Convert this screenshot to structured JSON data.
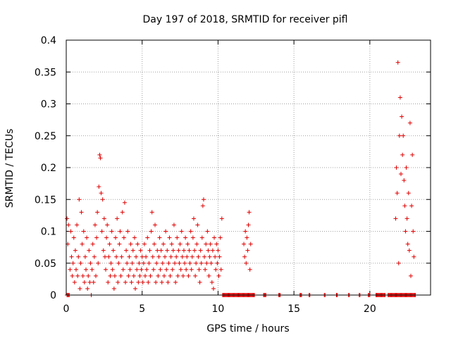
{
  "chart_data": {
    "type": "scatter",
    "title": "Day 197 of 2018, SRMTID for receiver pifl",
    "xlabel": "GPS time / hours",
    "ylabel": "SRMTID / TECUs",
    "xlim": [
      0,
      24
    ],
    "ylim": [
      0,
      0.4
    ],
    "x_ticks": [
      0,
      5,
      10,
      15,
      20
    ],
    "x_tick_labels": [
      "0",
      "5",
      "10",
      "15",
      "20"
    ],
    "y_ticks": [
      0,
      0.05,
      0.1,
      0.15,
      0.2,
      0.25,
      0.3,
      0.35,
      0.4
    ],
    "y_tick_labels": [
      "0",
      "0.05",
      "0.1",
      "0.15",
      "0.2",
      "0.25",
      "0.3",
      "0.35",
      "0.4"
    ],
    "grid": true,
    "marker": "+",
    "color": "#e00000",
    "series": [
      {
        "name": "SRMTID",
        "points": [
          [
            0.05,
            0.12
          ],
          [
            0.1,
            0.08
          ],
          [
            0.15,
            0.11
          ],
          [
            0.2,
            0.0
          ],
          [
            0.25,
            0.04
          ],
          [
            0.3,
            0.1
          ],
          [
            0.35,
            0.06
          ],
          [
            0.4,
            0.03
          ],
          [
            0.45,
            0.05
          ],
          [
            0.5,
            0.09
          ],
          [
            0.55,
            0.02
          ],
          [
            0.6,
            0.07
          ],
          [
            0.65,
            0.04
          ],
          [
            0.7,
            0.11
          ],
          [
            0.75,
            0.03
          ],
          [
            0.8,
            0.06
          ],
          [
            0.85,
            0.15
          ],
          [
            0.9,
            0.01
          ],
          [
            0.95,
            0.05
          ],
          [
            1.0,
            0.13
          ],
          [
            1.05,
            0.08
          ],
          [
            1.1,
            0.03
          ],
          [
            1.15,
            0.1
          ],
          [
            1.2,
            0.02
          ],
          [
            1.25,
            0.06
          ],
          [
            1.3,
            0.04
          ],
          [
            1.35,
            0.09
          ],
          [
            1.4,
            0.01
          ],
          [
            1.45,
            0.03
          ],
          [
            1.5,
            0.07
          ],
          [
            1.55,
            0.02
          ],
          [
            1.6,
            0.05
          ],
          [
            1.65,
            0.0
          ],
          [
            1.7,
            0.04
          ],
          [
            1.75,
            0.08
          ],
          [
            1.8,
            0.02
          ],
          [
            1.85,
            0.06
          ],
          [
            1.9,
            0.11
          ],
          [
            1.95,
            0.03
          ],
          [
            2.0,
            0.09
          ],
          [
            2.05,
            0.13
          ],
          [
            2.1,
            0.05
          ],
          [
            2.15,
            0.17
          ],
          [
            2.2,
            0.22
          ],
          [
            2.25,
            0.215
          ],
          [
            2.3,
            0.16
          ],
          [
            2.35,
            0.1
          ],
          [
            2.4,
            0.15
          ],
          [
            2.45,
            0.07
          ],
          [
            2.5,
            0.12
          ],
          [
            2.55,
            0.06
          ],
          [
            2.6,
            0.04
          ],
          [
            2.65,
            0.09
          ],
          [
            2.7,
            0.11
          ],
          [
            2.75,
            0.02
          ],
          [
            2.8,
            0.06
          ],
          [
            2.85,
            0.08
          ],
          [
            2.9,
            0.03
          ],
          [
            2.95,
            0.05
          ],
          [
            3.0,
            0.1
          ],
          [
            3.05,
            0.04
          ],
          [
            3.1,
            0.07
          ],
          [
            3.15,
            0.01
          ],
          [
            3.2,
            0.03
          ],
          [
            3.25,
            0.09
          ],
          [
            3.3,
            0.06
          ],
          [
            3.35,
            0.12
          ],
          [
            3.4,
            0.02
          ],
          [
            3.45,
            0.05
          ],
          [
            3.5,
            0.08
          ],
          [
            3.55,
            0.1
          ],
          [
            3.6,
            0.03
          ],
          [
            3.65,
            0.06
          ],
          [
            3.7,
            0.13
          ],
          [
            3.75,
            0.04
          ],
          [
            3.8,
            0.09
          ],
          [
            3.85,
            0.145
          ],
          [
            3.9,
            0.02
          ],
          [
            3.95,
            0.07
          ],
          [
            4.0,
            0.05
          ],
          [
            4.05,
            0.1
          ],
          [
            4.1,
            0.03
          ],
          [
            4.15,
            0.06
          ],
          [
            4.2,
            0.04
          ],
          [
            4.25,
            0.08
          ],
          [
            4.3,
            0.02
          ],
          [
            4.35,
            0.05
          ],
          [
            4.4,
            0.07
          ],
          [
            4.45,
            0.03
          ],
          [
            4.5,
            0.09
          ],
          [
            4.55,
            0.01
          ],
          [
            4.6,
            0.06
          ],
          [
            4.65,
            0.04
          ],
          [
            4.7,
            0.08
          ],
          [
            4.75,
            0.02
          ],
          [
            4.8,
            0.05
          ],
          [
            4.85,
            0.03
          ],
          [
            4.9,
            0.07
          ],
          [
            4.95,
            0.04
          ],
          [
            5.0,
            0.06
          ],
          [
            5.05,
            0.02
          ],
          [
            5.1,
            0.05
          ],
          [
            5.15,
            0.08
          ],
          [
            5.2,
            0.03
          ],
          [
            5.25,
            0.06
          ],
          [
            5.3,
            0.04
          ],
          [
            5.35,
            0.09
          ],
          [
            5.4,
            0.02
          ],
          [
            5.45,
            0.05
          ],
          [
            5.5,
            0.07
          ],
          [
            5.55,
            0.03
          ],
          [
            5.6,
            0.1
          ],
          [
            5.65,
            0.13
          ],
          [
            5.7,
            0.06
          ],
          [
            5.75,
            0.04
          ],
          [
            5.8,
            0.08
          ],
          [
            5.85,
            0.11
          ],
          [
            5.9,
            0.02
          ],
          [
            5.95,
            0.05
          ],
          [
            6.0,
            0.07
          ],
          [
            6.05,
            0.03
          ],
          [
            6.1,
            0.06
          ],
          [
            6.15,
            0.09
          ],
          [
            6.2,
            0.04
          ],
          [
            6.25,
            0.07
          ],
          [
            6.3,
            0.02
          ],
          [
            6.35,
            0.05
          ],
          [
            6.4,
            0.08
          ],
          [
            6.45,
            0.03
          ],
          [
            6.5,
            0.06
          ],
          [
            6.55,
            0.1
          ],
          [
            6.6,
            0.04
          ],
          [
            6.65,
            0.07
          ],
          [
            6.7,
            0.02
          ],
          [
            6.75,
            0.05
          ],
          [
            6.8,
            0.09
          ],
          [
            6.85,
            0.03
          ],
          [
            6.9,
            0.06
          ],
          [
            6.95,
            0.08
          ],
          [
            7.0,
            0.04
          ],
          [
            7.05,
            0.07
          ],
          [
            7.1,
            0.11
          ],
          [
            7.15,
            0.05
          ],
          [
            7.2,
            0.02
          ],
          [
            7.25,
            0.06
          ],
          [
            7.3,
            0.09
          ],
          [
            7.35,
            0.03
          ],
          [
            7.4,
            0.07
          ],
          [
            7.45,
            0.05
          ],
          [
            7.5,
            0.08
          ],
          [
            7.55,
            0.04
          ],
          [
            7.6,
            0.1
          ],
          [
            7.65,
            0.06
          ],
          [
            7.7,
            0.03
          ],
          [
            7.75,
            0.07
          ],
          [
            7.8,
            0.05
          ],
          [
            7.85,
            0.09
          ],
          [
            7.9,
            0.04
          ],
          [
            7.95,
            0.06
          ],
          [
            8.0,
            0.08
          ],
          [
            8.05,
            0.03
          ],
          [
            8.1,
            0.07
          ],
          [
            8.15,
            0.05
          ],
          [
            8.2,
            0.1
          ],
          [
            8.25,
            0.04
          ],
          [
            8.3,
            0.06
          ],
          [
            8.35,
            0.09
          ],
          [
            8.4,
            0.12
          ],
          [
            8.45,
            0.07
          ],
          [
            8.5,
            0.03
          ],
          [
            8.55,
            0.05
          ],
          [
            8.6,
            0.08
          ],
          [
            8.65,
            0.11
          ],
          [
            8.7,
            0.06
          ],
          [
            8.75,
            0.04
          ],
          [
            8.8,
            0.02
          ],
          [
            8.85,
            0.07
          ],
          [
            8.9,
            0.05
          ],
          [
            8.95,
            0.09
          ],
          [
            9.0,
            0.14
          ],
          [
            9.05,
            0.15
          ],
          [
            9.1,
            0.06
          ],
          [
            9.15,
            0.04
          ],
          [
            9.2,
            0.08
          ],
          [
            9.25,
            0.05
          ],
          [
            9.3,
            0.1
          ],
          [
            9.35,
            0.07
          ],
          [
            9.4,
            0.03
          ],
          [
            9.45,
            0.06
          ],
          [
            9.5,
            0.08
          ],
          [
            9.55,
            0.05
          ],
          [
            9.6,
            0.02
          ],
          [
            9.65,
            0.07
          ],
          [
            9.7,
            0.01
          ],
          [
            9.75,
            0.09
          ],
          [
            9.8,
            0.06
          ],
          [
            9.85,
            0.04
          ],
          [
            9.9,
            0.08
          ],
          [
            9.95,
            0.05
          ],
          [
            10.0,
            0.07
          ],
          [
            10.05,
            0.03
          ],
          [
            10.1,
            0.06
          ],
          [
            10.15,
            0.09
          ],
          [
            10.2,
            0.04
          ],
          [
            10.25,
            0.12
          ],
          [
            11.7,
            0.08
          ],
          [
            11.75,
            0.06
          ],
          [
            11.8,
            0.1
          ],
          [
            11.85,
            0.05
          ],
          [
            11.9,
            0.09
          ],
          [
            11.95,
            0.07
          ],
          [
            12.0,
            0.11
          ],
          [
            12.05,
            0.13
          ],
          [
            12.1,
            0.04
          ],
          [
            12.15,
            0.08
          ],
          [
            21.7,
            0.12
          ],
          [
            21.75,
            0.2
          ],
          [
            21.8,
            0.16
          ],
          [
            21.85,
            0.365
          ],
          [
            21.9,
            0.05
          ],
          [
            21.95,
            0.25
          ],
          [
            22.0,
            0.31
          ],
          [
            22.05,
            0.19
          ],
          [
            22.1,
            0.28
          ],
          [
            22.15,
            0.22
          ],
          [
            22.2,
            0.25
          ],
          [
            22.25,
            0.18
          ],
          [
            22.3,
            0.14
          ],
          [
            22.35,
            0.1
          ],
          [
            22.4,
            0.2
          ],
          [
            22.45,
            0.12
          ],
          [
            22.5,
            0.08
          ],
          [
            22.55,
            0.16
          ],
          [
            22.6,
            0.07
          ],
          [
            22.65,
            0.27
          ],
          [
            22.7,
            0.03
          ],
          [
            22.75,
            0.14
          ],
          [
            22.8,
            0.22
          ],
          [
            22.85,
            0.1
          ],
          [
            22.9,
            0.06
          ]
        ],
        "zero_clusters": [
          [
            0.05,
            0.15
          ],
          [
            10.3,
            12.4
          ],
          [
            13.0,
            13.15
          ],
          [
            14.0,
            14.1
          ],
          [
            15.4,
            15.5
          ],
          [
            16.0,
            16.05
          ],
          [
            17.0,
            17.05
          ],
          [
            17.8,
            17.85
          ],
          [
            18.6,
            18.65
          ],
          [
            19.3,
            19.35
          ],
          [
            19.9,
            20.0
          ],
          [
            20.4,
            21.0
          ],
          [
            21.2,
            23.0
          ]
        ]
      }
    ]
  }
}
